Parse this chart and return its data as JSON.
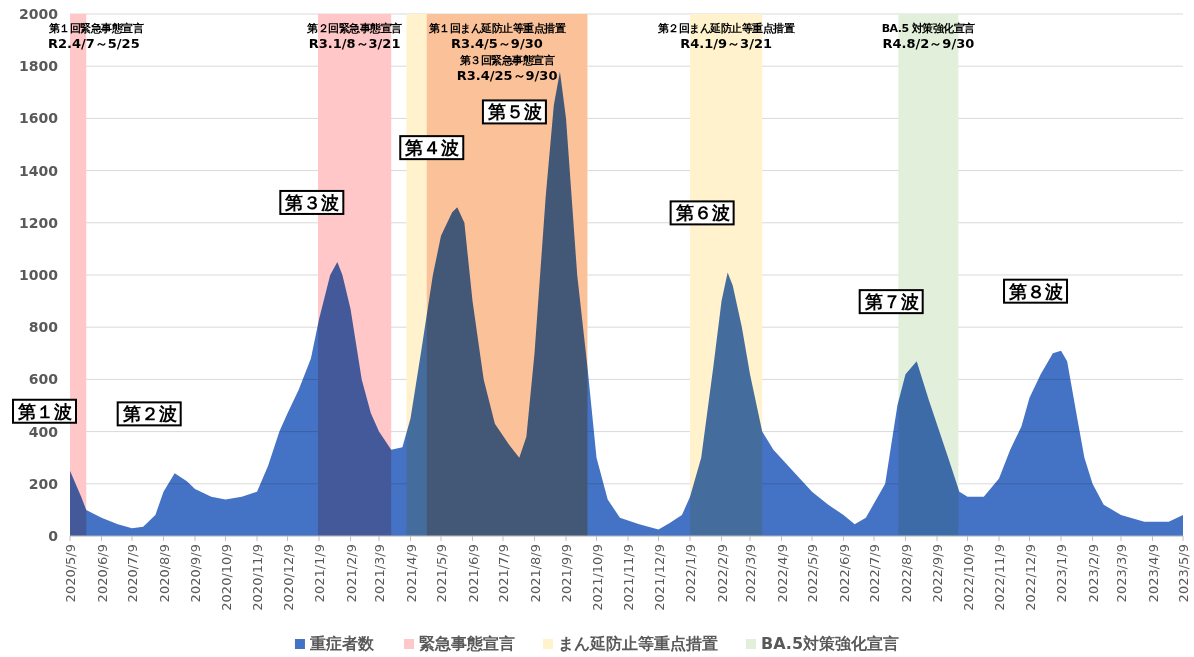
{
  "chart_data": {
    "type": "area",
    "grid": "y",
    "legend": "bottom",
    "xlim": [
      "2020-05-09",
      "2023-05-09"
    ],
    "ylim": [
      0,
      2000
    ],
    "yticks": [
      0,
      200,
      400,
      600,
      800,
      1000,
      1200,
      1400,
      1600,
      1800,
      2000
    ],
    "xticks": [
      {
        "value": "2020-05-09",
        "label": "2020/5/9"
      },
      {
        "value": "2020-06-09",
        "label": "2020/6/9"
      },
      {
        "value": "2020-07-09",
        "label": "2020/7/9"
      },
      {
        "value": "2020-08-09",
        "label": "2020/8/9"
      },
      {
        "value": "2020-09-09",
        "label": "2020/9/9"
      },
      {
        "value": "2020-10-09",
        "label": "2020/10/9"
      },
      {
        "value": "2020-11-09",
        "label": "2020/11/9"
      },
      {
        "value": "2020-12-09",
        "label": "2020/12/9"
      },
      {
        "value": "2021-01-09",
        "label": "2021/1/9"
      },
      {
        "value": "2021-02-09",
        "label": "2021/2/9"
      },
      {
        "value": "2021-03-09",
        "label": "2021/3/9"
      },
      {
        "value": "2021-04-09",
        "label": "2021/4/9"
      },
      {
        "value": "2021-05-09",
        "label": "2021/5/9"
      },
      {
        "value": "2021-06-09",
        "label": "2021/6/9"
      },
      {
        "value": "2021-07-09",
        "label": "2021/7/9"
      },
      {
        "value": "2021-08-09",
        "label": "2021/8/9"
      },
      {
        "value": "2021-09-09",
        "label": "2021/9/9"
      },
      {
        "value": "2021-10-09",
        "label": "2021/10/9"
      },
      {
        "value": "2021-11-09",
        "label": "2021/11/9"
      },
      {
        "value": "2021-12-09",
        "label": "2021/12/9"
      },
      {
        "value": "2022-01-09",
        "label": "2022/1/9"
      },
      {
        "value": "2022-02-09",
        "label": "2022/2/9"
      },
      {
        "value": "2022-03-09",
        "label": "2022/3/9"
      },
      {
        "value": "2022-04-09",
        "label": "2022/4/9"
      },
      {
        "value": "2022-05-09",
        "label": "2022/5/9"
      },
      {
        "value": "2022-06-09",
        "label": "2022/6/9"
      },
      {
        "value": "2022-07-09",
        "label": "2022/7/9"
      },
      {
        "value": "2022-08-09",
        "label": "2022/8/9"
      },
      {
        "value": "2022-09-09",
        "label": "2022/9/9"
      },
      {
        "value": "2022-10-09",
        "label": "2022/10/9"
      },
      {
        "value": "2022-11-09",
        "label": "2022/11/9"
      },
      {
        "value": "2022-12-09",
        "label": "2022/12/9"
      },
      {
        "value": "2023-01-09",
        "label": "2023/1/9"
      },
      {
        "value": "2023-02-09",
        "label": "2023/2/9"
      },
      {
        "value": "2023-03-09",
        "label": "2023/3/9"
      },
      {
        "value": "2023-04-09",
        "label": "2023/4/9"
      },
      {
        "value": "2023-05-09",
        "label": "2023/5/9"
      }
    ],
    "x": [
      "2020-05-09",
      "2020-05-20",
      "2020-05-25",
      "2020-06-09",
      "2020-06-25",
      "2020-07-09",
      "2020-07-20",
      "2020-08-01",
      "2020-08-09",
      "2020-08-20",
      "2020-09-01",
      "2020-09-09",
      "2020-09-25",
      "2020-10-09",
      "2020-10-25",
      "2020-11-09",
      "2020-11-20",
      "2020-12-01",
      "2020-12-09",
      "2020-12-20",
      "2021-01-01",
      "2021-01-09",
      "2021-01-20",
      "2021-01-27",
      "2021-02-01",
      "2021-02-09",
      "2021-02-20",
      "2021-03-01",
      "2021-03-09",
      "2021-03-21",
      "2021-04-01",
      "2021-04-09",
      "2021-04-20",
      "2021-05-01",
      "2021-05-09",
      "2021-05-20",
      "2021-05-25",
      "2021-06-01",
      "2021-06-09",
      "2021-06-20",
      "2021-07-01",
      "2021-07-15",
      "2021-07-25",
      "2021-08-01",
      "2021-08-09",
      "2021-08-20",
      "2021-08-28",
      "2021-09-03",
      "2021-09-09",
      "2021-09-20",
      "2021-09-30",
      "2021-10-09",
      "2021-10-20",
      "2021-11-01",
      "2021-11-20",
      "2021-12-09",
      "2021-12-20",
      "2022-01-01",
      "2022-01-09",
      "2022-01-20",
      "2022-02-01",
      "2022-02-09",
      "2022-02-15",
      "2022-02-20",
      "2022-03-01",
      "2022-03-09",
      "2022-03-21",
      "2022-04-01",
      "2022-04-20",
      "2022-05-09",
      "2022-05-25",
      "2022-06-09",
      "2022-06-20",
      "2022-07-01",
      "2022-07-20",
      "2022-08-01",
      "2022-08-09",
      "2022-08-20",
      "2022-09-01",
      "2022-09-20",
      "2022-10-01",
      "2022-10-09",
      "2022-10-25",
      "2022-11-09",
      "2022-11-20",
      "2022-12-01",
      "2022-12-09",
      "2022-12-20",
      "2023-01-01",
      "2023-01-09",
      "2023-01-15",
      "2023-01-25",
      "2023-02-01",
      "2023-02-09",
      "2023-02-20",
      "2023-03-09",
      "2023-04-01",
      "2023-04-25",
      "2023-05-09"
    ],
    "series": [
      {
        "name": "重症者数",
        "color": "#4472c4",
        "values": [
          250,
          150,
          100,
          70,
          45,
          30,
          35,
          80,
          170,
          240,
          210,
          180,
          150,
          140,
          150,
          170,
          270,
          400,
          470,
          560,
          680,
          830,
          1000,
          1050,
          1000,
          870,
          600,
          470,
          400,
          330,
          340,
          450,
          720,
          1000,
          1150,
          1240,
          1260,
          1200,
          900,
          600,
          430,
          350,
          300,
          380,
          700,
          1300,
          1650,
          1780,
          1600,
          1000,
          650,
          300,
          140,
          70,
          45,
          25,
          50,
          80,
          150,
          300,
          650,
          900,
          1010,
          960,
          800,
          620,
          400,
          330,
          250,
          170,
          120,
          80,
          45,
          70,
          200,
          500,
          620,
          670,
          520,
          300,
          170,
          150,
          150,
          220,
          330,
          420,
          530,
          620,
          700,
          710,
          670,
          450,
          300,
          200,
          120,
          80,
          55,
          55,
          80
        ]
      }
    ],
    "bands": [
      {
        "axis": "x",
        "from": "2020-05-09",
        "to": "2020-05-25",
        "label": "緊急事態宣言",
        "color": "#ffc7c7"
      },
      {
        "axis": "x",
        "from": "2021-01-08",
        "to": "2021-03-21",
        "color": "#ffc7c7"
      },
      {
        "axis": "x",
        "from": "2021-04-05",
        "to": "2021-09-30",
        "label": "まん延防止等重点措置",
        "color": "#fff2cc"
      },
      {
        "axis": "x",
        "from": "2021-04-25",
        "to": "2021-09-30",
        "color": "#fbc29a"
      },
      {
        "axis": "x",
        "from": "2022-01-09",
        "to": "2022-03-21",
        "color": "#fff2cc"
      },
      {
        "axis": "x",
        "from": "2022-08-02",
        "to": "2022-09-30",
        "label": "BA.5対策強化宣言",
        "color": "#e2efda"
      }
    ],
    "annotations": [
      "第１回緊急事態宣言",
      "R2.4/7～5/25",
      "第２回緊急事態宣言",
      "R3.1/8～3/21",
      "第１回まん延防止等重点措置",
      "R3.4/5～9/30",
      "第３回緊急事態宣言",
      "R3.4/25～9/30",
      "第２回まん延防止等重点措置",
      "R4.1/9～3/21",
      "BA.5 対策強化宣言",
      "R4.8/2～9/30",
      {
        "text": "第１波",
        "x": "2020-05-09",
        "y": 250
      },
      {
        "text": "第２波",
        "x": "2020-08-20",
        "y": 240
      },
      {
        "text": "第３波",
        "x": "2021-01-27",
        "y": 1050
      },
      {
        "text": "第４波",
        "x": "2021-05-25",
        "y": 1260
      },
      {
        "text": "第５波",
        "x": "2021-09-03",
        "y": 1780
      },
      {
        "text": "第６波",
        "x": "2022-02-15",
        "y": 1010
      },
      {
        "text": "第７波",
        "x": "2022-08-20",
        "y": 670
      },
      {
        "text": "第８波",
        "x": "2023-01-09",
        "y": 710
      }
    ]
  }
}
